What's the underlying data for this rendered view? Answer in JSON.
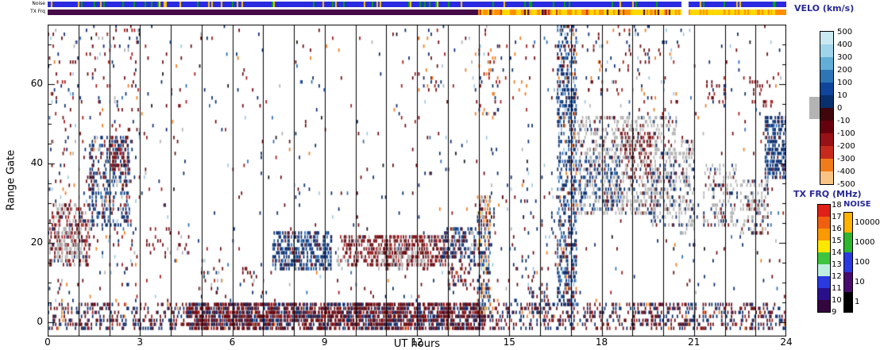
{
  "strips": {
    "noise_label": "Noise",
    "txfrq_label": "TX Frq",
    "noise_strip": {
      "segments": [
        {
          "t": [
            0,
            20.6
          ],
          "colors": {
            "noiseblue": 0.86,
            "green": 0.09,
            "gold": 0.05
          }
        },
        {
          "t": [
            20.6,
            20.85
          ],
          "colors": {
            "white": 1
          }
        },
        {
          "t": [
            20.85,
            24
          ],
          "colors": {
            "noiseblue": 0.88,
            "green": 0.07,
            "gold": 0.05
          }
        }
      ]
    },
    "txfrq_strip": {
      "segments": [
        {
          "t": [
            0,
            14.0
          ],
          "colors": {
            "purple": 1
          }
        },
        {
          "t": [
            14.0,
            20.6
          ],
          "colors": {
            "orange2": 0.4,
            "yellow2": 0.4,
            "purple": 0.12,
            "brightred": 0.08
          }
        },
        {
          "t": [
            20.6,
            20.85
          ],
          "colors": {
            "white": 1
          }
        },
        {
          "t": [
            20.85,
            23.55
          ],
          "colors": {
            "yellow2": 0.72,
            "orange2": 0.28
          }
        },
        {
          "t": [
            23.55,
            24
          ],
          "colors": {
            "orange2": 0.6,
            "yellow2": 0.4
          }
        }
      ]
    }
  },
  "legend": {
    "velo_title": "VELO (km/s)",
    "velo_labels": [
      "500",
      "400",
      "300",
      "200",
      "100",
      "10",
      "0",
      "-10",
      "-100",
      "-200",
      "-300",
      "-400",
      "-500"
    ],
    "velo_colors": [
      "#c9e8f2",
      "#9fd4ea",
      "#62aed6",
      "#2e75b6",
      "#10459c",
      "#08306b",
      "#3f070b",
      "#67000d",
      "#971116",
      "#c62a1c",
      "#ef7b1a",
      "#f9c483"
    ],
    "ground_scatter_color": "#b4b4b4",
    "txfrq_title": "TX FRQ (MHz)",
    "txfrq_labels": [
      "18",
      "17",
      "16",
      "15",
      "14",
      "13",
      "12",
      "11",
      "10",
      "9"
    ],
    "txfrq_colors": [
      "#e02018",
      "#f06010",
      "#fb9902",
      "#ffe800",
      "#3fc440",
      "#bfeee0",
      "#2a39e0",
      "#2a0f8a",
      "#33063d"
    ],
    "noise_title": "NOISE",
    "noise_labels": [
      "10000",
      "1000",
      "100",
      "10",
      "1"
    ],
    "noise_colors": [
      "#ffb300",
      "#2fb52f",
      "#2a39e0",
      "#4a0b6e",
      "#000000"
    ]
  },
  "chart_data": {
    "type": "heatmap",
    "x_label": "UT hours",
    "y_label": "Range Gate",
    "x_range": [
      0,
      24
    ],
    "y_range": [
      0,
      75
    ],
    "x_ticks": [
      0,
      3,
      6,
      9,
      12,
      15,
      18,
      21,
      24
    ],
    "y_ticks": [
      0,
      20,
      40,
      60
    ],
    "hour_gridlines": true,
    "palette": {
      "navy": "#0a2d6e",
      "blue": "#2e6db4",
      "lightblue": "#9fc8e8",
      "darkred": "#6b0c12",
      "red": "#a31b1b",
      "brightred": "#cc3322",
      "orange": "#ee7d21",
      "paleorange": "#f7c27f",
      "yellow": "#ffd84d",
      "gray": "#b4b4b4",
      "black": "#151515",
      "noiseblue": "#2a2ae0",
      "green": "#00a400",
      "gold": "#ffc800",
      "purple": "#460a46",
      "orange2": "#ff9000",
      "yellow2": "#ffd800",
      "white": "#ffffff"
    },
    "features": [
      {
        "t": [
          0,
          24
        ],
        "g": [
          4,
          75
        ],
        "d": 0.016,
        "mix": {
          "darkred": 0.3,
          "navy": 0.3,
          "red": 0.1,
          "blue": 0.07,
          "orange": 0.08,
          "lightblue": 0.06,
          "gray": 0.05,
          "black": 0.04
        }
      },
      {
        "t": [
          0,
          3
        ],
        "g": [
          5,
          75
        ],
        "d": 0.045,
        "mix": {
          "darkred": 0.32,
          "navy": 0.3,
          "red": 0.14,
          "orange": 0.08,
          "lightblue": 0.08,
          "gray": 0.08
        }
      },
      {
        "t": [
          0,
          24
        ],
        "g": [
          -2,
          5
        ],
        "d": 0.32,
        "mix": {
          "darkred": 0.45,
          "navy": 0.4,
          "red": 0.1,
          "orange": 0.05
        }
      },
      {
        "t": [
          4.5,
          14.2
        ],
        "g": [
          -2,
          5
        ],
        "d": 0.6,
        "mix": {
          "darkred": 0.62,
          "navy": 0.26,
          "red": 0.12
        }
      },
      {
        "t": [
          0.05,
          1.35
        ],
        "g": [
          14,
          30
        ],
        "d": 0.38,
        "mix": {
          "darkred": 0.42,
          "red": 0.18,
          "gray": 0.28,
          "navy": 0.12
        }
      },
      {
        "t": [
          0.3,
          1.1
        ],
        "g": [
          16,
          24
        ],
        "d": 0.35,
        "mix": {
          "gray": 0.85,
          "darkred": 0.15
        }
      },
      {
        "t": [
          1.35,
          2.65
        ],
        "g": [
          24,
          47
        ],
        "d": 0.33,
        "mix": {
          "navy": 0.5,
          "blue": 0.18,
          "darkred": 0.15,
          "gray": 0.1,
          "red": 0.07
        }
      },
      {
        "t": [
          2.05,
          2.65
        ],
        "g": [
          38,
          47
        ],
        "d": 0.4,
        "mix": {
          "darkred": 0.55,
          "red": 0.3,
          "navy": 0.15
        }
      },
      {
        "t": [
          3.2,
          4.6
        ],
        "g": [
          16,
          24
        ],
        "d": 0.1,
        "mix": {
          "darkred": 0.55,
          "red": 0.2,
          "gray": 0.25
        }
      },
      {
        "t": [
          4.9,
          5.7
        ],
        "g": [
          6,
          14
        ],
        "d": 0.14,
        "mix": {
          "gray": 0.4,
          "darkred": 0.4,
          "navy": 0.2
        }
      },
      {
        "t": [
          6.2,
          7.3
        ],
        "g": [
          6,
          14
        ],
        "d": 0.1,
        "mix": {
          "darkred": 0.5,
          "navy": 0.3,
          "gray": 0.2
        }
      },
      {
        "t": [
          7.3,
          9.2
        ],
        "g": [
          13,
          23
        ],
        "d": 0.55,
        "mix": {
          "navy": 0.62,
          "blue": 0.2,
          "darkred": 0.12,
          "gray": 0.06
        }
      },
      {
        "t": [
          8.9,
          9.6
        ],
        "g": [
          13,
          19
        ],
        "d": 0.22,
        "mix": {
          "gray": 0.8,
          "navy": 0.2
        }
      },
      {
        "t": [
          9.5,
          13.0
        ],
        "g": [
          14,
          22
        ],
        "d": 0.5,
        "mix": {
          "darkred": 0.6,
          "red": 0.25,
          "gray": 0.1,
          "navy": 0.05
        }
      },
      {
        "t": [
          10.7,
          12.3
        ],
        "g": [
          13,
          19
        ],
        "d": 0.32,
        "mix": {
          "gray": 0.8,
          "darkred": 0.2
        }
      },
      {
        "t": [
          12.8,
          13.9
        ],
        "g": [
          16,
          24
        ],
        "d": 0.5,
        "mix": {
          "navy": 0.58,
          "blue": 0.15,
          "darkred": 0.22,
          "gray": 0.05
        }
      },
      {
        "t": [
          13.0,
          14.0
        ],
        "g": [
          8,
          16
        ],
        "d": 0.22,
        "mix": {
          "darkred": 0.6,
          "navy": 0.3,
          "red": 0.1
        }
      },
      {
        "t": [
          13.95,
          14.35
        ],
        "g": [
          2,
          32
        ],
        "d": 0.5,
        "mix": {
          "orange": 0.24,
          "navy": 0.3,
          "darkred": 0.2,
          "blue": 0.1,
          "yellow": 0.06,
          "lightblue": 0.1
        }
      },
      {
        "t": [
          13.8,
          14.6
        ],
        "g": [
          52,
          70
        ],
        "d": 0.1,
        "mix": {
          "orange": 0.4,
          "navy": 0.28,
          "red": 0.2,
          "lightblue": 0.12
        }
      },
      {
        "t": [
          14.3,
          15.6
        ],
        "g": [
          52,
          72
        ],
        "d": 0.035,
        "mix": {
          "orange": 0.45,
          "navy": 0.25,
          "red": 0.3
        }
      },
      {
        "t": [
          14.4,
          16.5
        ],
        "g": [
          5,
          40
        ],
        "d": 0.03,
        "mix": {
          "navy": 0.5,
          "darkred": 0.3,
          "orange": 0.1,
          "lightblue": 0.1
        }
      },
      {
        "t": [
          15.6,
          16.3
        ],
        "g": [
          2,
          10
        ],
        "d": 0.18,
        "mix": {
          "navy": 0.6,
          "darkred": 0.4
        }
      },
      {
        "t": [
          16.55,
          17.15
        ],
        "g": [
          4,
          75
        ],
        "d": 0.45,
        "mix": {
          "navy": 0.54,
          "blue": 0.18,
          "darkred": 0.1,
          "orange": 0.08,
          "lightblue": 0.1
        }
      },
      {
        "t": [
          17.2,
          20.4
        ],
        "g": [
          27,
          52
        ],
        "d": 0.33,
        "mix": {
          "gray": 0.74,
          "navy": 0.14,
          "darkred": 0.12
        }
      },
      {
        "t": [
          17.2,
          18.6
        ],
        "g": [
          28,
          42
        ],
        "d": 0.18,
        "mix": {
          "navy": 0.7,
          "blue": 0.3
        }
      },
      {
        "t": [
          18.7,
          19.6
        ],
        "g": [
          36,
          48
        ],
        "d": 0.22,
        "mix": {
          "darkred": 0.7,
          "red": 0.3
        }
      },
      {
        "t": [
          17.0,
          20.5
        ],
        "g": [
          55,
          75
        ],
        "d": 0.04,
        "mix": {
          "navy": 0.35,
          "darkred": 0.28,
          "orange": 0.15,
          "red": 0.1,
          "lightblue": 0.12
        }
      },
      {
        "t": [
          19.6,
          20.4
        ],
        "g": [
          24,
          40
        ],
        "d": 0.28,
        "mix": {
          "gray": 0.5,
          "navy": 0.38,
          "darkred": 0.12
        }
      },
      {
        "t": [
          20.5,
          21.0
        ],
        "g": [
          22,
          46
        ],
        "d": 0.38,
        "mix": {
          "gray": 0.68,
          "navy": 0.22,
          "darkred": 0.1
        }
      },
      {
        "t": [
          21.3,
          22.4
        ],
        "g": [
          24,
          40
        ],
        "d": 0.24,
        "mix": {
          "gray": 0.68,
          "navy": 0.16,
          "darkred": 0.16
        }
      },
      {
        "t": [
          21.4,
          22.0
        ],
        "g": [
          55,
          62
        ],
        "d": 0.11,
        "mix": {
          "darkred": 0.5,
          "red": 0.28,
          "navy": 0.22
        }
      },
      {
        "t": [
          22.5,
          23.4
        ],
        "g": [
          22,
          36
        ],
        "d": 0.3,
        "mix": {
          "gray": 0.75,
          "navy": 0.15,
          "darkred": 0.1
        }
      },
      {
        "t": [
          22.8,
          23.6
        ],
        "g": [
          54,
          62
        ],
        "d": 0.14,
        "mix": {
          "darkred": 0.6,
          "red": 0.4
        }
      },
      {
        "t": [
          23.3,
          24.0
        ],
        "g": [
          36,
          52
        ],
        "d": 0.58,
        "mix": {
          "navy": 0.7,
          "blue": 0.2,
          "darkred": 0.1
        }
      },
      {
        "t": [
          0.1,
          0.7
        ],
        "g": [
          54,
          63
        ],
        "d": 0.14,
        "mix": {
          "darkred": 0.5,
          "red": 0.28,
          "navy": 0.22
        }
      },
      {
        "t": [
          12.0,
          12.7
        ],
        "g": [
          58,
          75
        ],
        "d": 0.07,
        "mix": {
          "navy": 0.4,
          "darkred": 0.3,
          "orange": 0.3
        }
      }
    ]
  }
}
